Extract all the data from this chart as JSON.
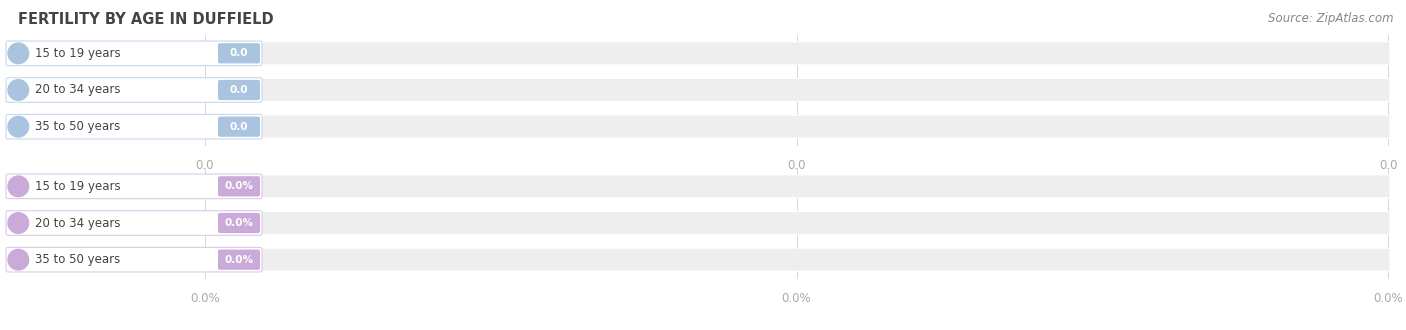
{
  "title": "FERTILITY BY AGE IN DUFFIELD",
  "source": "Source: ZipAtlas.com",
  "top_section": {
    "categories": [
      "15 to 19 years",
      "20 to 34 years",
      "35 to 50 years"
    ],
    "values": [
      0.0,
      0.0,
      0.0
    ],
    "bar_color": "#aac4e0",
    "circle_color": "#aac4e0",
    "pill_border_color": "#c5d9ee"
  },
  "bottom_section": {
    "categories": [
      "15 to 19 years",
      "20 to 34 years",
      "35 to 50 years"
    ],
    "values": [
      0.0,
      0.0,
      0.0
    ],
    "bar_color": "#c9aad8",
    "circle_color": "#c9aad8",
    "pill_border_color": "#dcc9e8"
  },
  "bg_color": "#ffffff",
  "bar_bg_color": "#eeeeee",
  "title_color": "#444444",
  "tick_color": "#aaaaaa",
  "source_color": "#888888",
  "label_text_color": "#444444",
  "value_text_color": "#ffffff",
  "title_fontsize": 10.5,
  "source_fontsize": 8.5,
  "label_fontsize": 8.5,
  "value_fontsize": 7.5,
  "tick_fontsize": 8.5
}
